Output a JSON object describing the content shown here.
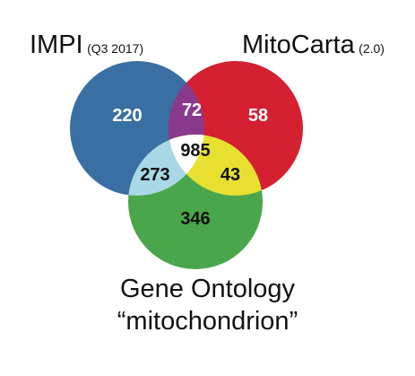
{
  "sets": {
    "impi": {
      "name": "IMPI",
      "note": "(Q3 2017)",
      "color": "#3a6fa3"
    },
    "mitocarta": {
      "name": "MitoCarta",
      "note": "(2.0)",
      "color": "#d42030"
    },
    "go": {
      "name_line1": "Gene Ontology",
      "name_line2": "“mitochondrion”",
      "color": "#4aa64a"
    }
  },
  "regions": {
    "impi_only": {
      "count": "220",
      "color": "#3a6fa3",
      "text_color": "#ffffff"
    },
    "mitocarta_only": {
      "count": "58",
      "color": "#d42030",
      "text_color": "#ffffff"
    },
    "go_only": {
      "count": "346",
      "color": "#4aa64a",
      "text_color": "#111111"
    },
    "impi_mitocarta": {
      "count": "72",
      "color": "#8a3a8c",
      "text_color": "#ffffff"
    },
    "impi_go": {
      "count": "273",
      "color": "#a8d8e6",
      "text_color": "#111111"
    },
    "mitocarta_go": {
      "count": "43",
      "color": "#e8e030",
      "text_color": "#111111"
    },
    "all_three": {
      "count": "985",
      "color": "#ffffff",
      "text_color": "#111111"
    }
  }
}
